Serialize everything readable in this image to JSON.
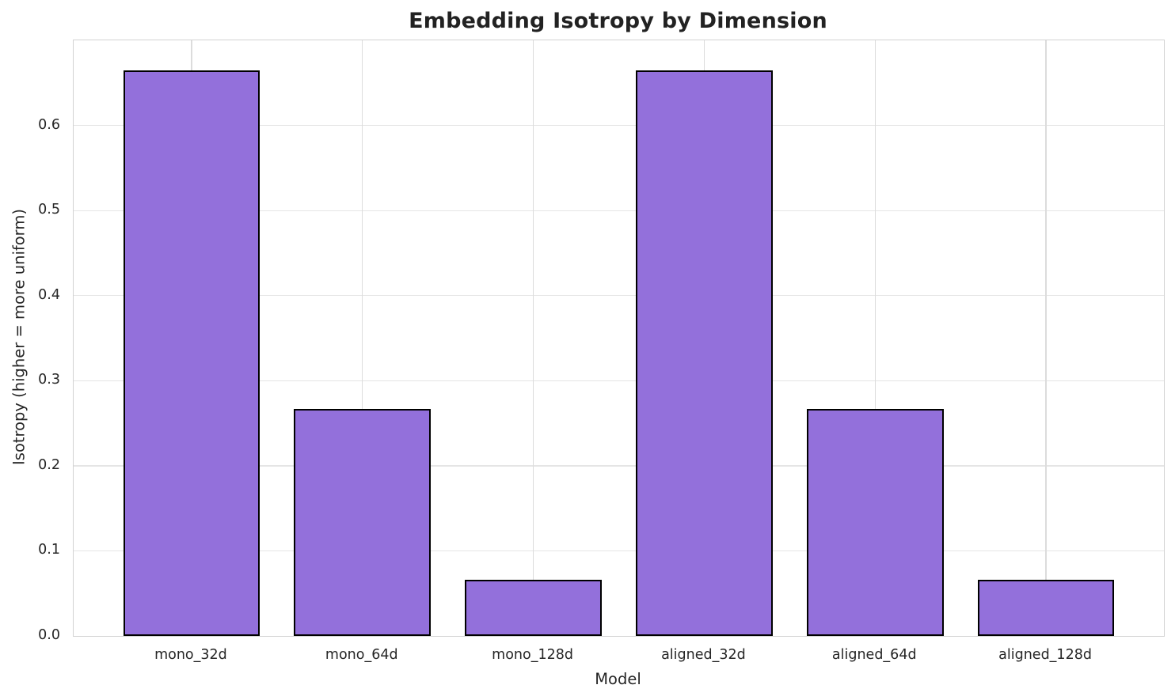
{
  "chart_data": {
    "type": "bar",
    "title": "Embedding Isotropy by Dimension",
    "xlabel": "Model",
    "ylabel": "Isotropy (higher = more uniform)",
    "categories": [
      "mono_32d",
      "mono_64d",
      "mono_128d",
      "aligned_32d",
      "aligned_64d",
      "aligned_128d"
    ],
    "values": [
      0.665,
      0.267,
      0.066,
      0.665,
      0.267,
      0.066
    ],
    "ylim": [
      0,
      0.7
    ],
    "yticks": [
      0.0,
      0.1,
      0.2,
      0.3,
      0.4,
      0.5,
      0.6
    ],
    "ytick_labels": [
      "0.0",
      "0.1",
      "0.2",
      "0.3",
      "0.4",
      "0.5",
      "0.6"
    ],
    "grid": true,
    "legend": "none",
    "bar_color": "#9370DB",
    "bar_edge_color": "#000000",
    "grid_color_horizontal": "#e5e5e5",
    "grid_color_vertical": "#dcdcdc",
    "spine_color": "#d2d2d2",
    "text_color": "#262626",
    "background_color": "#ffffff"
  }
}
